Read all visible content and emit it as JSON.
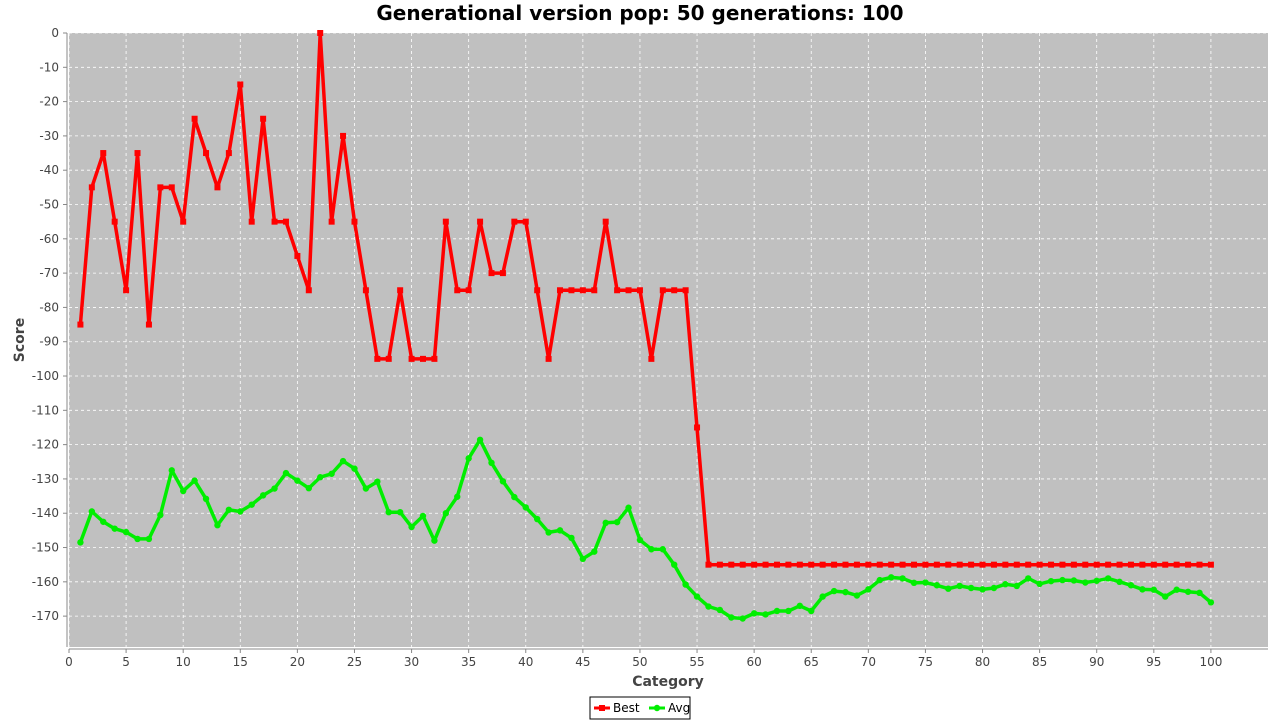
{
  "chart_data": {
    "type": "line",
    "title": "Generational version pop: 50 generations: 100",
    "xlabel": "Category",
    "ylabel": "Score",
    "xlim": [
      0,
      105
    ],
    "ylim": [
      -179,
      0
    ],
    "grid": true,
    "legend_position": "bottom-center",
    "x_ticks": [
      0,
      5,
      10,
      15,
      20,
      25,
      30,
      35,
      40,
      45,
      50,
      55,
      60,
      65,
      70,
      75,
      80,
      85,
      90,
      95,
      100
    ],
    "y_ticks": [
      0,
      -10,
      -20,
      -30,
      -40,
      -50,
      -60,
      -70,
      -80,
      -90,
      -100,
      -110,
      -120,
      -130,
      -140,
      -150,
      -160,
      -170
    ],
    "x": [
      1,
      2,
      3,
      4,
      5,
      6,
      7,
      8,
      9,
      10,
      11,
      12,
      13,
      14,
      15,
      16,
      17,
      18,
      19,
      20,
      21,
      22,
      23,
      24,
      25,
      26,
      27,
      28,
      29,
      30,
      31,
      32,
      33,
      34,
      35,
      36,
      37,
      38,
      39,
      40,
      41,
      42,
      43,
      44,
      45,
      46,
      47,
      48,
      49,
      50,
      51,
      52,
      53,
      54,
      55,
      56,
      57,
      58,
      59,
      60,
      61,
      62,
      63,
      64,
      65,
      66,
      67,
      68,
      69,
      70,
      71,
      72,
      73,
      74,
      75,
      76,
      77,
      78,
      79,
      80,
      81,
      82,
      83,
      84,
      85,
      86,
      87,
      88,
      89,
      90,
      91,
      92,
      93,
      94,
      95,
      96,
      97,
      98,
      99,
      100
    ],
    "series": [
      {
        "name": "Best",
        "color": "#ff0000",
        "marker": "square",
        "values": [
          -85,
          -45,
          -35,
          -55,
          -75,
          -35,
          -85,
          -45,
          -45,
          -55,
          -25,
          -35,
          -45,
          -35,
          -15,
          -55,
          -25,
          -55,
          -55,
          -65,
          -75,
          0,
          -55,
          -30,
          -55,
          -75,
          -95,
          -95,
          -75,
          -95,
          -95,
          -95,
          -55,
          -75,
          -75,
          -55,
          -70,
          -70,
          -55,
          -55,
          -75,
          -95,
          -75,
          -75,
          -75,
          -75,
          -55,
          -75,
          -75,
          -75,
          -95,
          -75,
          -75,
          -75,
          -115,
          -155,
          -155,
          -155,
          -155,
          -155,
          -155,
          -155,
          -155,
          -155,
          -155,
          -155,
          -155,
          -155,
          -155,
          -155,
          -155,
          -155,
          -155,
          -155,
          -155,
          -155,
          -155,
          -155,
          -155,
          -155,
          -155,
          -155,
          -155,
          -155,
          -155,
          -155,
          -155,
          -155,
          -155,
          -155,
          -155,
          -155,
          -155,
          -155,
          -155,
          -155,
          -155,
          -155,
          -155,
          -155
        ]
      },
      {
        "name": "Avg",
        "color": "#00ee00",
        "marker": "circle",
        "values": [
          -148.5,
          -139.5,
          -142.5,
          -144.5,
          -145.5,
          -147.5,
          -147.5,
          -140.5,
          -127.5,
          -133.5,
          -130.5,
          -135.8,
          -143.5,
          -139,
          -139.5,
          -137.5,
          -134.8,
          -132.8,
          -128.3,
          -130.5,
          -132.7,
          -129.5,
          -128.5,
          -124.8,
          -127,
          -132.8,
          -130.8,
          -139.7,
          -139.7,
          -144,
          -140.8,
          -148,
          -140,
          -135.2,
          -124,
          -118.6,
          -125.3,
          -130.7,
          -135.3,
          -138.3,
          -141.7,
          -145.6,
          -145,
          -147.2,
          -153.3,
          -151.2,
          -142.8,
          -142.6,
          -138.4,
          -147.8,
          -150.5,
          -150.5,
          -155,
          -160.8,
          -164.3,
          -167.2,
          -168.2,
          -170.4,
          -170.7,
          -169.2,
          -169.5,
          -168.5,
          -168.5,
          -167,
          -168.5,
          -164.3,
          -162.7,
          -163,
          -164,
          -162.2,
          -159.5,
          -158.7,
          -159,
          -160.3,
          -160.2,
          -161,
          -162,
          -161.2,
          -161.8,
          -162.2,
          -161.8,
          -160.7,
          -161.2,
          -159,
          -160.6,
          -159.8,
          -159.5,
          -159.6,
          -160.2,
          -159.7,
          -159,
          -160,
          -161,
          -162.2,
          -162.3,
          -164.3,
          -162.3,
          -162.9,
          -163.2,
          -166
        ]
      }
    ]
  }
}
